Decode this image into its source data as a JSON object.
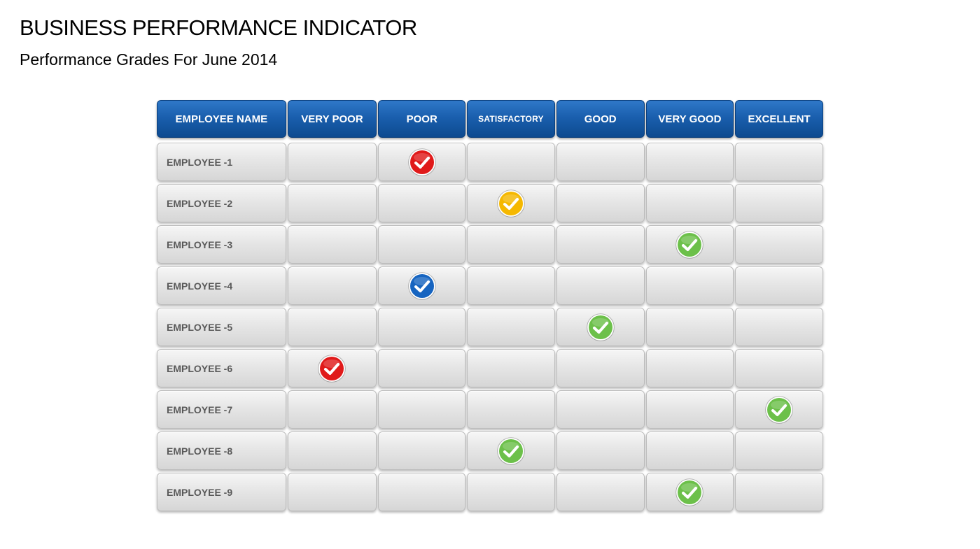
{
  "title": "BUSINESS PERFORMANCE INDICATOR",
  "subtitle": "Performance Grades For June 2014",
  "table": {
    "headers": [
      "EMPLOYEE NAME",
      "VERY POOR",
      "POOR",
      "SATISFACTORY",
      "GOOD",
      "VERY GOOD",
      "EXCELLENT"
    ],
    "rows": [
      {
        "name": "EMPLOYEE -1",
        "grade_index": 2,
        "check_color": "#e01a1a"
      },
      {
        "name": "EMPLOYEE -2",
        "grade_index": 3,
        "check_color": "#f5b800"
      },
      {
        "name": "EMPLOYEE -3",
        "grade_index": 5,
        "check_color": "#6cc04a"
      },
      {
        "name": "EMPLOYEE -4",
        "grade_index": 2,
        "check_color": "#1664c0"
      },
      {
        "name": "EMPLOYEE -5",
        "grade_index": 4,
        "check_color": "#6cc04a"
      },
      {
        "name": "EMPLOYEE -6",
        "grade_index": 1,
        "check_color": "#e01a1a"
      },
      {
        "name": "EMPLOYEE -7",
        "grade_index": 6,
        "check_color": "#6cc04a"
      },
      {
        "name": "EMPLOYEE -8",
        "grade_index": 3,
        "check_color": "#6cc04a"
      },
      {
        "name": "EMPLOYEE -9",
        "grade_index": 5,
        "check_color": "#6cc04a"
      }
    ]
  },
  "icons": {
    "grade_mark": "checkmark-circle-icon"
  },
  "colors": {
    "header_blue": "#1a5fae",
    "cell_gray": "#e6e6e6",
    "name_text": "#595959"
  }
}
